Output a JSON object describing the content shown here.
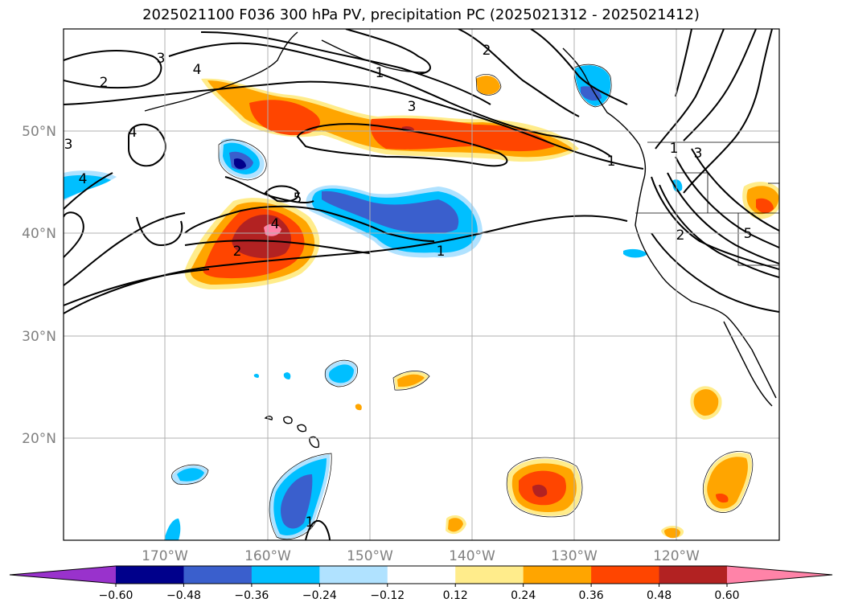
{
  "title": "2025021100 F036 300 hPa PV, precipitation PC (2025021312 - 2025021412)",
  "latitude_labels": [
    "50°N",
    "40°N",
    "30°N",
    "20°N"
  ],
  "longitude_labels": [
    "170°W",
    "160°W",
    "150°W",
    "140°W",
    "130°W",
    "120°W"
  ],
  "colorbar": {
    "colors": [
      "#9932cc",
      "#00008b",
      "#3a5fcd",
      "#00bfff",
      "#b0e2ff",
      "#ffffff",
      "#ffec8b",
      "#ffa500",
      "#ff4500",
      "#b22222",
      "#ff83a8"
    ],
    "tick_labels": [
      "−0.60",
      "−0.48",
      "−0.36",
      "−0.24",
      "−0.12",
      "0.12",
      "0.24",
      "0.36",
      "0.48",
      "0.60"
    ]
  },
  "contour_labels": [
    "2",
    "3",
    "4",
    "1",
    "3",
    "2",
    "4",
    "3",
    "4",
    "5",
    "4",
    "2",
    "1",
    "1",
    "3",
    "1",
    "2",
    "5",
    "1"
  ]
}
